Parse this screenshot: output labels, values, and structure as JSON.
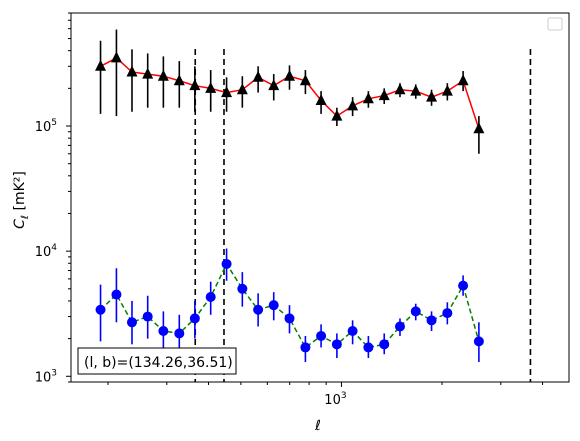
{
  "chart_data": {
    "type": "scatter",
    "xlabel": "ℓ",
    "ylabel_main": "C",
    "ylabel_sub": "ℓ",
    "ylabel_unit": "[mK²]",
    "x_scale": "log",
    "y_scale": "log",
    "xlim": [
      155,
      4800
    ],
    "ylim": [
      900,
      800000
    ],
    "x_tick_labels": [
      {
        "base": "10",
        "exp": "3",
        "value": 1000
      }
    ],
    "y_tick_labels": [
      {
        "base": "10",
        "exp": "3",
        "value": 1000
      },
      {
        "base": "10",
        "exp": "4",
        "value": 10000
      },
      {
        "base": "10",
        "exp": "5",
        "value": 100000
      }
    ],
    "vlines": [
      365,
      445,
      3680
    ],
    "annotation": "(l, b)=(134.26,36.51)",
    "legend": "top-right, empty",
    "series": [
      {
        "marker": "triangle",
        "color": "#000000",
        "line_color": "#ff0000",
        "line_style": "solid",
        "points": [
          {
            "x": 190,
            "y": 300000,
            "lo": 125000,
            "hi": 480000
          },
          {
            "x": 212,
            "y": 350000,
            "lo": 120000,
            "hi": 590000
          },
          {
            "x": 236,
            "y": 270000,
            "lo": 130000,
            "hi": 410000
          },
          {
            "x": 263,
            "y": 260000,
            "lo": 140000,
            "hi": 380000
          },
          {
            "x": 293,
            "y": 250000,
            "lo": 140000,
            "hi": 360000
          },
          {
            "x": 327,
            "y": 230000,
            "lo": 140000,
            "hi": 330000
          },
          {
            "x": 364,
            "y": 210000,
            "lo": 130000,
            "hi": 300000
          },
          {
            "x": 406,
            "y": 200000,
            "lo": 130000,
            "hi": 280000
          },
          {
            "x": 453,
            "y": 185000,
            "lo": 130000,
            "hi": 245000
          },
          {
            "x": 505,
            "y": 195000,
            "lo": 140000,
            "hi": 250000
          },
          {
            "x": 563,
            "y": 245000,
            "lo": 185000,
            "hi": 300000
          },
          {
            "x": 627,
            "y": 210000,
            "lo": 160000,
            "hi": 260000
          },
          {
            "x": 699,
            "y": 250000,
            "lo": 195000,
            "hi": 305000
          },
          {
            "x": 780,
            "y": 230000,
            "lo": 180000,
            "hi": 280000
          },
          {
            "x": 869,
            "y": 160000,
            "lo": 125000,
            "hi": 190000
          },
          {
            "x": 969,
            "y": 120000,
            "lo": 100000,
            "hi": 140000
          },
          {
            "x": 1080,
            "y": 145000,
            "lo": 120000,
            "hi": 170000
          },
          {
            "x": 1204,
            "y": 165000,
            "lo": 140000,
            "hi": 190000
          },
          {
            "x": 1343,
            "y": 175000,
            "lo": 150000,
            "hi": 200000
          },
          {
            "x": 1497,
            "y": 195000,
            "lo": 170000,
            "hi": 220000
          },
          {
            "x": 1669,
            "y": 190000,
            "lo": 165000,
            "hi": 215000
          },
          {
            "x": 1861,
            "y": 170000,
            "lo": 145000,
            "hi": 195000
          },
          {
            "x": 2075,
            "y": 190000,
            "lo": 160000,
            "hi": 220000
          },
          {
            "x": 2313,
            "y": 230000,
            "lo": 190000,
            "hi": 275000
          },
          {
            "x": 2579,
            "y": 95000,
            "lo": 60000,
            "hi": 120000
          }
        ]
      },
      {
        "marker": "circle",
        "color": "#0000ff",
        "line_color": "#008000",
        "line_style": "dashed",
        "points": [
          {
            "x": 190,
            "y": 3400,
            "lo": 1900,
            "hi": 5400
          },
          {
            "x": 212,
            "y": 4500,
            "lo": 2700,
            "hi": 7300
          },
          {
            "x": 236,
            "y": 2700,
            "lo": 1800,
            "hi": 4000
          },
          {
            "x": 263,
            "y": 3000,
            "lo": 2000,
            "hi": 4400
          },
          {
            "x": 293,
            "y": 2300,
            "lo": 1500,
            "hi": 3300
          },
          {
            "x": 327,
            "y": 2200,
            "lo": 1500,
            "hi": 3100
          },
          {
            "x": 364,
            "y": 2900,
            "lo": 2000,
            "hi": 4000
          },
          {
            "x": 406,
            "y": 4300,
            "lo": 3100,
            "hi": 5700
          },
          {
            "x": 453,
            "y": 7900,
            "lo": 5800,
            "hi": 10500
          },
          {
            "x": 505,
            "y": 5000,
            "lo": 3600,
            "hi": 6800
          },
          {
            "x": 563,
            "y": 3400,
            "lo": 2500,
            "hi": 4600
          },
          {
            "x": 627,
            "y": 3700,
            "lo": 2800,
            "hi": 4700
          },
          {
            "x": 699,
            "y": 2900,
            "lo": 2200,
            "hi": 3700
          },
          {
            "x": 780,
            "y": 1700,
            "lo": 1300,
            "hi": 2100
          },
          {
            "x": 869,
            "y": 2100,
            "lo": 1700,
            "hi": 2600
          },
          {
            "x": 969,
            "y": 1800,
            "lo": 1400,
            "hi": 2200
          },
          {
            "x": 1080,
            "y": 2300,
            "lo": 1800,
            "hi": 2800
          },
          {
            "x": 1204,
            "y": 1700,
            "lo": 1400,
            "hi": 2100
          },
          {
            "x": 1343,
            "y": 1800,
            "lo": 1500,
            "hi": 2200
          },
          {
            "x": 1497,
            "y": 2500,
            "lo": 2100,
            "hi": 2900
          },
          {
            "x": 1669,
            "y": 3300,
            "lo": 2800,
            "hi": 3800
          },
          {
            "x": 1861,
            "y": 2800,
            "lo": 2300,
            "hi": 3300
          },
          {
            "x": 2075,
            "y": 3200,
            "lo": 2600,
            "hi": 3900
          },
          {
            "x": 2313,
            "y": 5300,
            "lo": 4400,
            "hi": 6400
          },
          {
            "x": 2579,
            "y": 1900,
            "lo": 1300,
            "hi": 2700
          }
        ]
      }
    ]
  }
}
